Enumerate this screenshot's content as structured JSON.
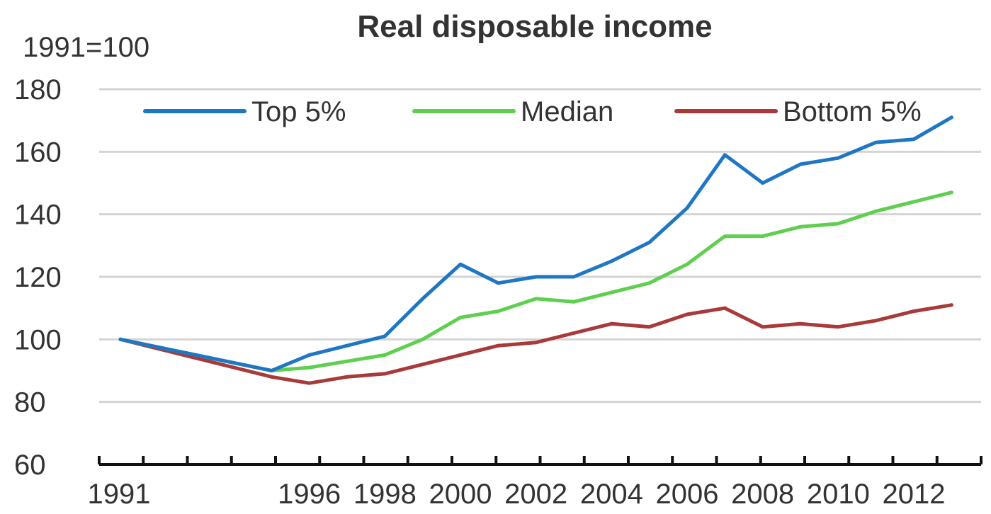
{
  "chart_data": {
    "type": "line",
    "title": "Real disposable income",
    "unit_label": "1991=100",
    "xlabel": "",
    "ylabel": "",
    "ylim": [
      60,
      180
    ],
    "yticks": [
      60,
      80,
      100,
      120,
      140,
      160,
      180
    ],
    "xlim": [
      1991,
      2013.5
    ],
    "xtick_labels": [
      "1991",
      "1996",
      "1998",
      "2000",
      "2002",
      "2004",
      "2006",
      "2008",
      "2010",
      "2012"
    ],
    "grid": true,
    "legend_position": "top",
    "x": [
      1991,
      1995,
      1996,
      1997,
      1998,
      1999,
      2000,
      2001,
      2002,
      2003,
      2004,
      2005,
      2006,
      2007,
      2008,
      2009,
      2010,
      2011,
      2012,
      2013
    ],
    "series": [
      {
        "name": "Top 5%",
        "color": "#1f77c4",
        "values": [
          100,
          90,
          95,
          98,
          101,
          113,
          124,
          118,
          120,
          120,
          125,
          131,
          142,
          159,
          150,
          156,
          158,
          163,
          164,
          171
        ]
      },
      {
        "name": "Median",
        "color": "#5fcf4f",
        "values": [
          100,
          90,
          91,
          93,
          95,
          100,
          107,
          109,
          113,
          112,
          115,
          118,
          124,
          133,
          133,
          136,
          137,
          141,
          144,
          147
        ]
      },
      {
        "name": "Bottom 5%",
        "color": "#a83a3a",
        "values": [
          100,
          88,
          86,
          88,
          89,
          92,
          95,
          98,
          99,
          102,
          105,
          104,
          108,
          110,
          104,
          105,
          104,
          106,
          109,
          111
        ]
      }
    ]
  }
}
